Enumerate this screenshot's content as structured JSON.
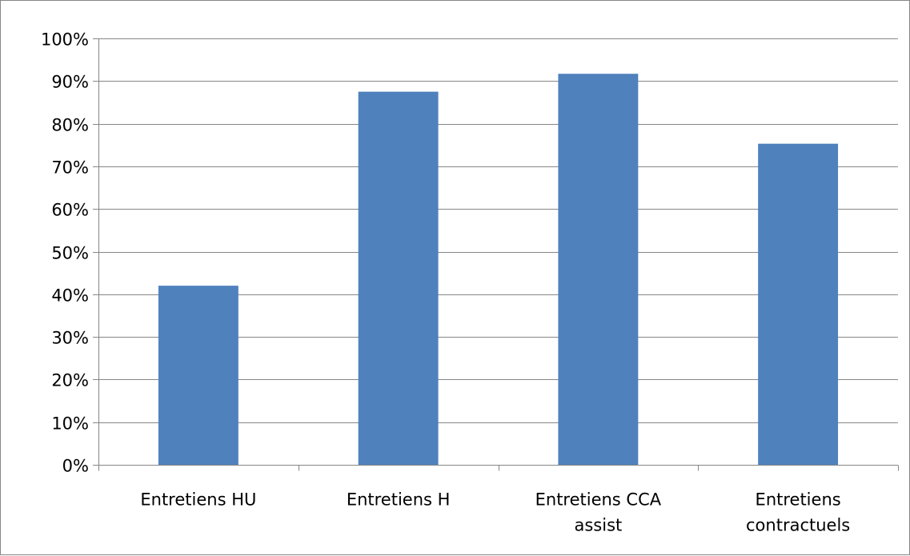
{
  "chart_data": {
    "type": "bar",
    "categories": [
      [
        "Entretiens HU"
      ],
      [
        "Entretiens H"
      ],
      [
        "Entretiens CCA",
        "assist"
      ],
      [
        "Entretiens",
        "contractuels"
      ]
    ],
    "values": [
      0.42,
      0.875,
      0.917,
      0.753
    ],
    "ylim": [
      0,
      1
    ],
    "y_ticks": [
      {
        "value": 0,
        "label": "0%"
      },
      {
        "value": 0.1,
        "label": "10%"
      },
      {
        "value": 0.2,
        "label": "20%"
      },
      {
        "value": 0.3,
        "label": "30%"
      },
      {
        "value": 0.4,
        "label": "40%"
      },
      {
        "value": 0.5,
        "label": "50%"
      },
      {
        "value": 0.6,
        "label": "60%"
      },
      {
        "value": 0.7,
        "label": "70%"
      },
      {
        "value": 0.8,
        "label": "80%"
      },
      {
        "value": 0.9,
        "label": "90%"
      },
      {
        "value": 1,
        "label": "100%"
      }
    ],
    "grid": true,
    "legend": "none",
    "bar_color": "#4F81BD",
    "grid_color": "#868686",
    "axis_color": "#868686"
  }
}
